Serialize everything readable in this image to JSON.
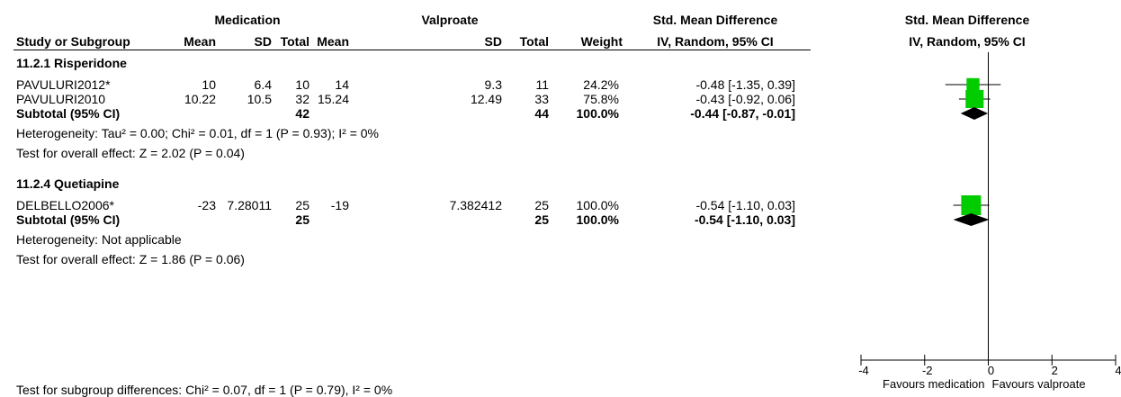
{
  "header": {
    "group1": "Medication",
    "group2": "Valproate",
    "effect_col": "Std. Mean Difference",
    "plot_col": "Std. Mean Difference",
    "study_col": "Study or Subgroup",
    "mean1": "Mean",
    "sd1": "SD",
    "total1": "Total",
    "mean2": "Mean",
    "sd2": "SD",
    "total2": "Total",
    "weight": "Weight",
    "method": "IV, Random, 95% CI",
    "plot_method": "IV, Random, 95% CI"
  },
  "subgroups": [
    {
      "title": "11.2.1 Risperidone",
      "studies": [
        {
          "name": "PAVULURI2012*",
          "mean1": "10",
          "sd1": "6.4",
          "n1": "10",
          "mean2": "14",
          "sd2": "9.3",
          "n2": "11",
          "weight": "24.2%",
          "ci": "-0.48 [-1.35, 0.39]"
        },
        {
          "name": "PAVULURI2010",
          "mean1": "10.22",
          "sd1": "10.5",
          "n1": "32",
          "mean2": "15.24",
          "sd2": "12.49",
          "n2": "33",
          "weight": "75.8%",
          "ci": "-0.43 [-0.92, 0.06]"
        }
      ],
      "subtotal": {
        "label": "Subtotal (95% CI)",
        "n1": "42",
        "n2": "44",
        "weight": "100.0%",
        "ci": "-0.44 [-0.87, -0.01]"
      },
      "heterogeneity": "Heterogeneity: Tau² = 0.00; Chi² = 0.01, df = 1 (P = 0.93); I² = 0%",
      "overall": "Test for overall effect: Z = 2.02 (P = 0.04)"
    },
    {
      "title": "11.2.4 Quetiapine",
      "studies": [
        {
          "name": "DELBELLO2006*",
          "mean1": "-23",
          "sd1": "7.28011",
          "n1": "25",
          "mean2": "-19",
          "sd2": "7.382412",
          "n2": "25",
          "weight": "100.0%",
          "ci": "-0.54 [-1.10, 0.03]"
        }
      ],
      "subtotal": {
        "label": "Subtotal (95% CI)",
        "n1": "25",
        "n2": "25",
        "weight": "100.0%",
        "ci": "-0.54 [-1.10, 0.03]"
      },
      "heterogeneity": "Heterogeneity: Not applicable",
      "overall": "Test for overall effect: Z = 1.86 (P = 0.06)"
    }
  ],
  "footer": "Test for subgroup differences: Chi² = 0.07, df = 1 (P = 0.79), I² = 0%",
  "colors": {
    "study_marker": "#00cc00",
    "diamond": "#000000",
    "line": "#000000"
  },
  "chart_data": {
    "type": "forest",
    "xlim": [
      -4,
      4
    ],
    "xticks": [
      "-4",
      "-2",
      "0",
      "2",
      "4"
    ],
    "left_label": "Favours medication",
    "right_label": "Favours valproate",
    "studies": [
      {
        "name": "PAVULURI2012*",
        "est": -0.48,
        "lo": -1.35,
        "hi": 0.39,
        "weight": 24.2
      },
      {
        "name": "PAVULURI2010",
        "est": -0.43,
        "lo": -0.92,
        "hi": 0.06,
        "weight": 75.8
      },
      {
        "name": "DELBELLO2006*",
        "est": -0.54,
        "lo": -1.1,
        "hi": 0.03,
        "weight": 100.0
      }
    ],
    "subtotals": [
      {
        "label": "Subtotal (95% CI)",
        "est": -0.44,
        "lo": -0.87,
        "hi": -0.01
      },
      {
        "label": "Subtotal (95% CI)",
        "est": -0.54,
        "lo": -1.1,
        "hi": 0.03
      }
    ]
  }
}
